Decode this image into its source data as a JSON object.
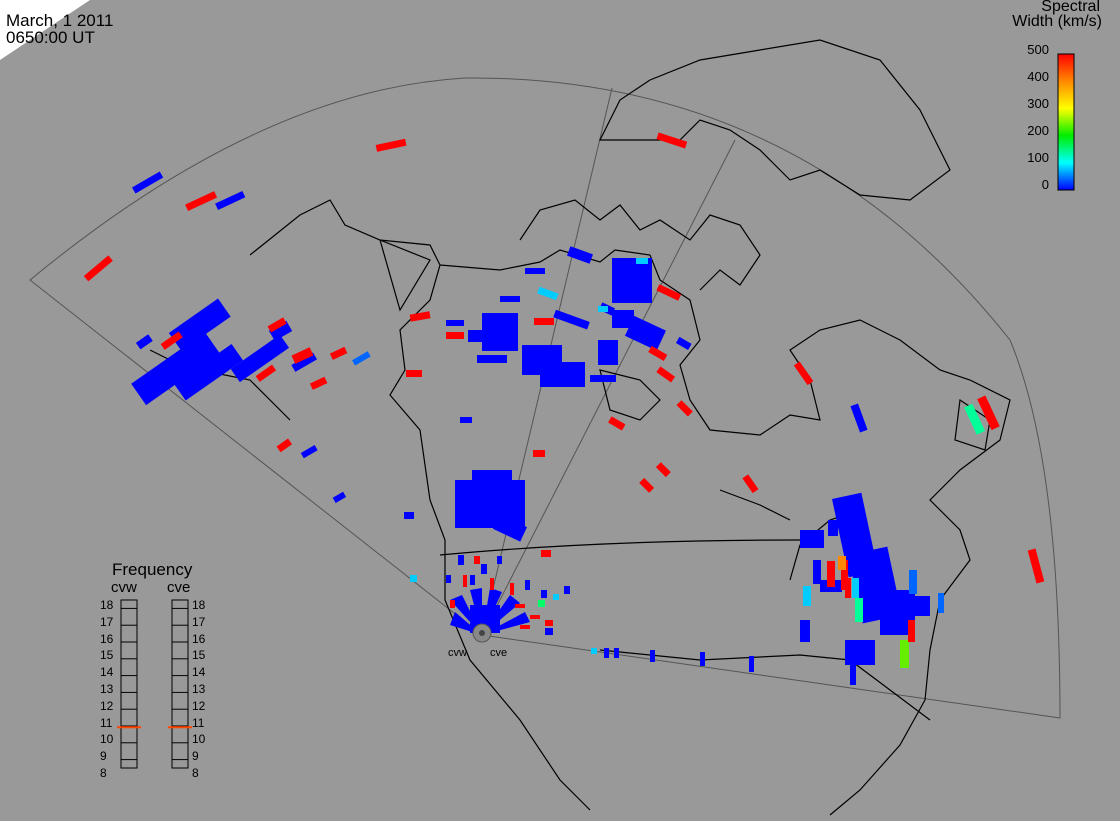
{
  "header": {
    "date": "March, 1 2011",
    "time": "0650:00 UT"
  },
  "colorbar": {
    "title_line1": "Spectral",
    "title_line2": "Width (km/s)",
    "ticks": [
      "500",
      "400",
      "300",
      "200",
      "100",
      "0"
    ],
    "stops": [
      "#ff0000",
      "#ff8800",
      "#ffff00",
      "#00ee00",
      "#00ffff",
      "#0000ff"
    ]
  },
  "frequency_panel": {
    "title": "Frequency",
    "radars": [
      {
        "label": "cvw",
        "value_mhz": 10.9
      },
      {
        "label": "cve",
        "value_mhz": 10.9
      }
    ],
    "scale": [
      "18",
      "17",
      "16",
      "15",
      "14",
      "13",
      "12",
      "11",
      "10",
      "9",
      "8"
    ],
    "min": 8,
    "max": 18,
    "marker_color": "#ff4400"
  },
  "radar_labels": [
    "cvw",
    "cve"
  ],
  "colors": {
    "background": "#999999",
    "high_width": "#ff0000",
    "low_width": "#0000ff",
    "mid_width": "#00ffaa"
  }
}
